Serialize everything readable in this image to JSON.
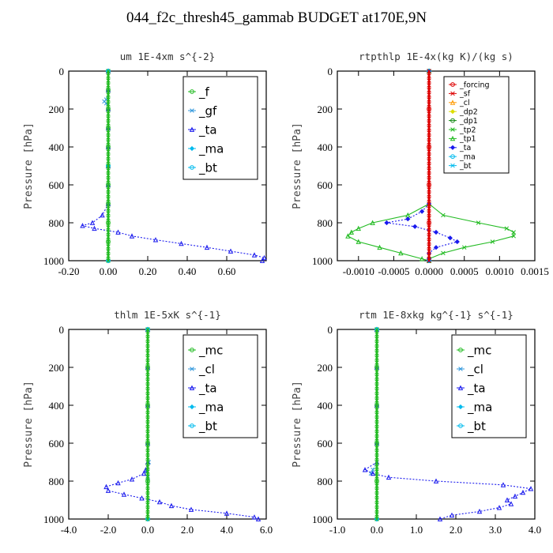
{
  "title": "044_f2c_thresh45_gammab  BUDGET at170E,9N",
  "colors": {
    "green": "#22bb22",
    "red": "#dd0000",
    "blue": "#1a1aee",
    "cyan": "#00bbee",
    "orange": "#ff9900",
    "yellow": "#dddd00",
    "lightblue": "#3399dd",
    "darkgreen": "#118811"
  },
  "chart_data": [
    {
      "type": "line",
      "title": "um   1E-4xm  s^{-2}",
      "ylabel": "Pressure [hPa]",
      "xlim": [
        -0.2,
        0.8
      ],
      "ylim": [
        1000,
        0
      ],
      "xticks": [
        "-0.20",
        "0.00",
        "0.20",
        "0.40",
        "0.60"
      ],
      "yticks": [
        "0",
        "200",
        "400",
        "600",
        "800",
        "1000"
      ],
      "grid": false,
      "legend_position": "top-right",
      "legend": [
        "_f",
        "_gf",
        "_ta",
        "_ma",
        "_bt"
      ],
      "series": [
        {
          "name": "_f",
          "color": "green",
          "y": [
            0,
            100,
            200,
            300,
            400,
            500,
            600,
            700,
            800,
            900,
            1000
          ],
          "x": [
            0,
            0,
            0,
            0,
            0,
            0,
            0,
            0,
            0,
            0,
            0
          ]
        },
        {
          "name": "_gf",
          "color": "lightblue",
          "y": [
            0,
            100,
            150,
            160,
            170,
            200,
            300,
            400,
            500,
            600,
            700
          ],
          "x": [
            0,
            0,
            -0.01,
            -0.02,
            -0.01,
            0,
            0,
            0,
            0,
            0,
            0
          ]
        },
        {
          "name": "_ta",
          "color": "blue",
          "y": [
            0,
            100,
            200,
            300,
            400,
            500,
            600,
            700,
            760,
            800,
            815,
            830,
            850,
            870,
            890,
            910,
            930,
            950,
            970,
            985,
            1000
          ],
          "x": [
            0,
            0,
            0,
            0,
            0,
            0,
            0,
            0,
            -0.03,
            -0.08,
            -0.13,
            -0.07,
            0.05,
            0.12,
            0.24,
            0.37,
            0.5,
            0.62,
            0.74,
            0.79,
            0.78
          ]
        },
        {
          "name": "_ma",
          "color": "cyan",
          "y": [
            0,
            500,
            1000
          ],
          "x": [
            0,
            0,
            0
          ]
        },
        {
          "name": "_bt",
          "color": "cyan",
          "y": [
            0,
            500,
            1000
          ],
          "x": [
            0,
            0,
            0
          ]
        }
      ]
    },
    {
      "type": "line",
      "title": "rtpthlp   1E-4x(kg K)/(kg s)",
      "ylabel": "Pressure [hPa]",
      "xlim": [
        -0.0013,
        0.0015
      ],
      "ylim": [
        1000,
        0
      ],
      "xticks": [
        "-0.0010",
        "-0.0005",
        "0.0000",
        "0.0005",
        "0.0010",
        "0.0015"
      ],
      "yticks": [
        "0",
        "200",
        "400",
        "600",
        "800",
        "1000"
      ],
      "grid": false,
      "legend_position": "top-right",
      "legend": [
        "_forcing",
        "_sf",
        "_cl",
        "_dp2",
        "_dp1",
        "_tp2",
        "_tp1",
        "_ta",
        "_ma",
        "_bt"
      ],
      "series": [
        {
          "name": "_forcing",
          "color": "red",
          "y": [
            0,
            200,
            400,
            600,
            800,
            1000
          ],
          "x": [
            0,
            0,
            0,
            0,
            0,
            0
          ]
        },
        {
          "name": "_sf",
          "color": "red",
          "y": [
            0,
            1000
          ],
          "x": [
            0,
            0
          ]
        },
        {
          "name": "_cl",
          "color": "orange",
          "y": [
            0,
            1000
          ],
          "x": [
            0,
            0
          ]
        },
        {
          "name": "_dp2",
          "color": "yellow",
          "y": [
            0,
            1000
          ],
          "x": [
            0,
            0
          ]
        },
        {
          "name": "_dp1",
          "color": "darkgreen",
          "y": [
            0,
            1000
          ],
          "x": [
            0,
            0
          ]
        },
        {
          "name": "_tp2",
          "color": "green",
          "y": [
            0,
            700,
            760,
            800,
            830,
            850,
            870,
            900,
            930,
            960,
            990,
            1000
          ],
          "x": [
            0,
            0,
            0.0002,
            0.0007,
            0.0011,
            0.0012,
            0.0012,
            0.0009,
            0.0005,
            0.0002,
            0,
            0
          ]
        },
        {
          "name": "_tp1",
          "color": "green",
          "y": [
            0,
            700,
            760,
            800,
            830,
            850,
            870,
            900,
            930,
            960,
            990,
            1000
          ],
          "x": [
            0,
            0,
            -0.0003,
            -0.0008,
            -0.001,
            -0.0011,
            -0.00115,
            -0.001,
            -0.0007,
            -0.0004,
            -0.0001,
            0
          ]
        },
        {
          "name": "_ta",
          "color": "blue",
          "y": [
            0,
            700,
            740,
            780,
            800,
            820,
            850,
            880,
            900,
            930,
            960,
            990,
            1000
          ],
          "x": [
            0,
            0,
            -0.0001,
            -0.0003,
            -0.0006,
            -0.0002,
            0.0001,
            0.0003,
            0.0004,
            0.0001,
            0,
            0,
            0
          ]
        },
        {
          "name": "_ma",
          "color": "cyan",
          "y": [
            0,
            1000
          ],
          "x": [
            0,
            0
          ]
        },
        {
          "name": "_bt",
          "color": "cyan",
          "y": [
            0,
            1000
          ],
          "x": [
            0,
            0
          ]
        }
      ]
    },
    {
      "type": "line",
      "title": "thlm   1E-5xK  s^{-1}",
      "ylabel": "Pressure [hPa]",
      "xlim": [
        -4.0,
        6.0
      ],
      "ylim": [
        1000,
        0
      ],
      "xticks": [
        "-4.0",
        "-2.0",
        "0.0",
        "2.0",
        "4.0",
        "6.0"
      ],
      "yticks": [
        "0",
        "200",
        "400",
        "600",
        "800",
        "1000"
      ],
      "grid": false,
      "legend_position": "top-right",
      "legend": [
        "_mc",
        "_cl",
        "_ta",
        "_ma",
        "_bt"
      ],
      "series": [
        {
          "name": "_mc",
          "color": "green",
          "y": [
            0,
            200,
            400,
            600,
            800,
            1000
          ],
          "x": [
            0,
            0,
            0,
            0,
            0,
            0
          ]
        },
        {
          "name": "_cl",
          "color": "lightblue",
          "y": [
            0,
            200,
            400,
            600,
            700,
            750,
            780,
            800
          ],
          "x": [
            0,
            0,
            0,
            0,
            0.05,
            -0.05,
            0,
            0
          ]
        },
        {
          "name": "_ta",
          "color": "blue",
          "y": [
            0,
            200,
            400,
            600,
            700,
            740,
            760,
            790,
            810,
            830,
            850,
            870,
            890,
            910,
            930,
            950,
            970,
            990,
            1000
          ],
          "x": [
            0,
            0,
            0,
            0,
            0,
            -0.1,
            -0.2,
            -0.8,
            -1.5,
            -2.1,
            -2.0,
            -1.2,
            -0.3,
            0.6,
            1.2,
            2.2,
            4.0,
            5.4,
            5.6
          ]
        },
        {
          "name": "_ma",
          "color": "cyan",
          "y": [
            0,
            1000
          ],
          "x": [
            0,
            0
          ]
        },
        {
          "name": "_bt",
          "color": "cyan",
          "y": [
            0,
            1000
          ],
          "x": [
            0,
            0
          ]
        }
      ]
    },
    {
      "type": "line",
      "title": "rtm   1E-8xkg  kg^{-1}  s^{-1}",
      "ylabel": "Pressure [hPa]",
      "xlim": [
        -1.0,
        4.0
      ],
      "ylim": [
        1000,
        0
      ],
      "xticks": [
        "-1.0",
        "0.0",
        "1.0",
        "2.0",
        "3.0",
        "4.0"
      ],
      "yticks": [
        "0",
        "200",
        "400",
        "600",
        "800",
        "1000"
      ],
      "grid": false,
      "legend_position": "top-right",
      "legend": [
        "_mc",
        "_cl",
        "_ta",
        "_ma",
        "_bt"
      ],
      "series": [
        {
          "name": "_mc",
          "color": "green",
          "y": [
            0,
            200,
            400,
            600,
            800,
            1000
          ],
          "x": [
            0,
            0,
            0,
            0,
            0,
            0
          ]
        },
        {
          "name": "_cl",
          "color": "lightblue",
          "y": [
            0,
            200,
            400,
            600,
            700,
            740,
            760
          ],
          "x": [
            0,
            0,
            0,
            0,
            0,
            -0.1,
            -0.15
          ]
        },
        {
          "name": "_ta",
          "color": "blue",
          "y": [
            0,
            200,
            400,
            600,
            700,
            740,
            760,
            780,
            800,
            820,
            840,
            860,
            880,
            900,
            920,
            940,
            960,
            980,
            1000
          ],
          "x": [
            0,
            0,
            0,
            0,
            0,
            -0.3,
            -0.1,
            0.3,
            1.5,
            3.2,
            3.9,
            3.7,
            3.5,
            3.3,
            3.4,
            3.1,
            2.6,
            1.9,
            1.6
          ]
        },
        {
          "name": "_ma",
          "color": "cyan",
          "y": [
            0,
            1000
          ],
          "x": [
            0,
            0
          ]
        },
        {
          "name": "_bt",
          "color": "cyan",
          "y": [
            0,
            1000
          ],
          "x": [
            0,
            0
          ]
        }
      ]
    }
  ]
}
